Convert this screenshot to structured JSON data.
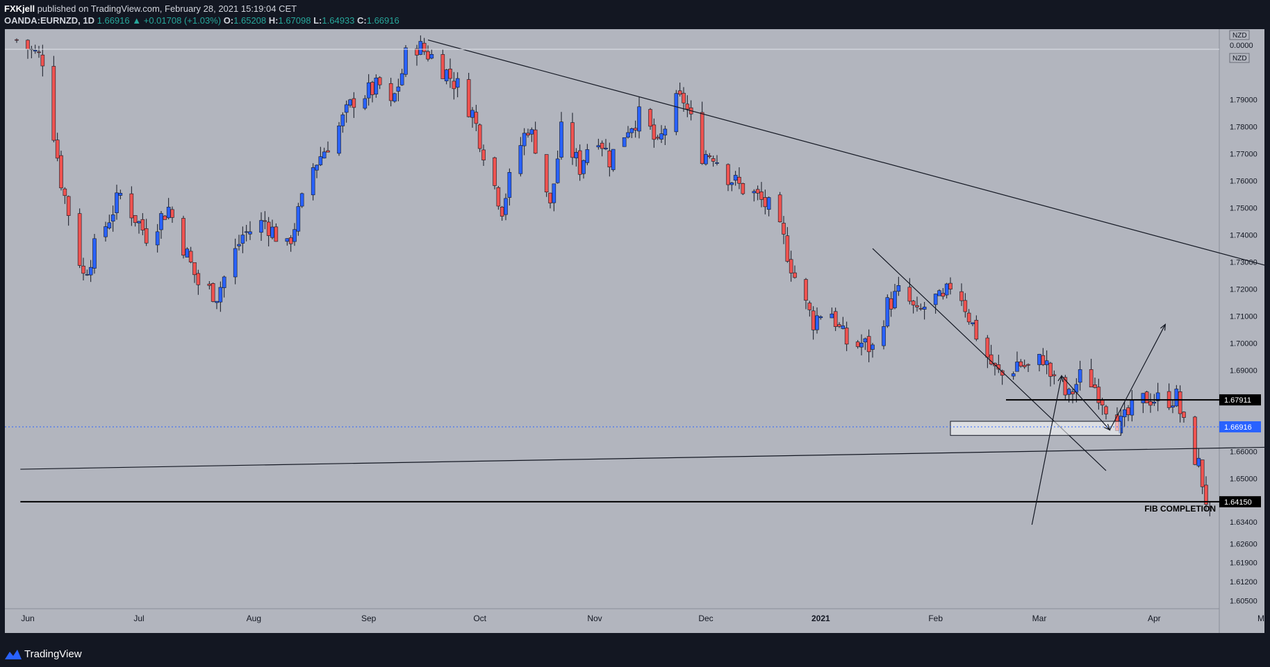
{
  "header": {
    "publisher": "FXKjell",
    "published_text": " published on TradingView.com, February 28, 2021 15:19:04 CET",
    "symbol": "OANDA:EURNZD, 1D",
    "last": "1.66916",
    "change": "+0.01708 (+1.03%)",
    "open_label": "O:",
    "open": "1.65208",
    "high_label": "H:",
    "high": "1.67098",
    "low_label": "L:",
    "low": "1.64933",
    "close_label": "C:",
    "close": "1.66916"
  },
  "footer": {
    "brand": "TradingView"
  },
  "colors": {
    "background": "#b2b5be",
    "frame": "#131722",
    "up": "#2962ff",
    "down": "#ef5350",
    "wick": "#131722",
    "trendline": "#131722",
    "current_price_line": "#2962ff"
  },
  "chart_data": {
    "type": "candlestick",
    "symbol": "OANDA:EURNZD",
    "timeframe": "1D",
    "currency": "NZD",
    "ylim": [
      1.6025,
      1.8125
    ],
    "yticks": [
      "1.79000",
      "1.78000",
      "1.77000",
      "1.76000",
      "1.75000",
      "1.74000",
      "1.73000",
      "1.72000",
      "1.71000",
      "1.70000",
      "1.69000",
      "1.66000",
      "1.65000",
      "1.63400",
      "1.62600",
      "1.61900",
      "1.61200",
      "1.60500"
    ],
    "xticks": [
      {
        "label": "Jun",
        "date": "2020-06-01"
      },
      {
        "label": "Jul",
        "date": "2020-07-01"
      },
      {
        "label": "Aug",
        "date": "2020-08-01"
      },
      {
        "label": "Sep",
        "date": "2020-09-01"
      },
      {
        "label": "Oct",
        "date": "2020-10-01"
      },
      {
        "label": "Nov",
        "date": "2020-11-01"
      },
      {
        "label": "Dec",
        "date": "2020-12-01"
      },
      {
        "label": "2021",
        "date": "2021-01-01",
        "bold": true
      },
      {
        "label": "Feb",
        "date": "2021-02-01"
      },
      {
        "label": "Mar",
        "date": "2021-03-01"
      },
      {
        "label": "Apr",
        "date": "2021-04-01"
      },
      {
        "label": "May",
        "date": "2021-05-01"
      }
    ],
    "scale_top_labels": [
      "NZD",
      "0.0000",
      "NZD"
    ],
    "price_labels": [
      {
        "price": 1.67911,
        "text": "1.67911",
        "style": "black"
      },
      {
        "price": 1.66916,
        "text": "1.66916",
        "style": "current"
      },
      {
        "price": 1.6415,
        "text": "1.64150",
        "style": "black"
      }
    ],
    "anchors": [
      {
        "date": "2020-05-29",
        "price": 1.812
      },
      {
        "date": "2020-06-05",
        "price": 1.805
      },
      {
        "date": "2020-06-10",
        "price": 1.76
      },
      {
        "date": "2020-06-16",
        "price": 1.725
      },
      {
        "date": "2020-06-19",
        "price": 1.735
      },
      {
        "date": "2020-06-26",
        "price": 1.755
      },
      {
        "date": "2020-07-03",
        "price": 1.74
      },
      {
        "date": "2020-07-09",
        "price": 1.75
      },
      {
        "date": "2020-07-17",
        "price": 1.722
      },
      {
        "date": "2020-07-22",
        "price": 1.718
      },
      {
        "date": "2020-07-29",
        "price": 1.74
      },
      {
        "date": "2020-08-04",
        "price": 1.745
      },
      {
        "date": "2020-08-10",
        "price": 1.735
      },
      {
        "date": "2020-08-17",
        "price": 1.765
      },
      {
        "date": "2020-08-24",
        "price": 1.78
      },
      {
        "date": "2020-08-28",
        "price": 1.79
      },
      {
        "date": "2020-09-04",
        "price": 1.795
      },
      {
        "date": "2020-09-07",
        "price": 1.787
      },
      {
        "date": "2020-09-10",
        "price": 1.8
      },
      {
        "date": "2020-09-12",
        "price": 1.812
      },
      {
        "date": "2020-09-19",
        "price": 1.805
      },
      {
        "date": "2020-09-25",
        "price": 1.795
      },
      {
        "date": "2020-09-29",
        "price": 1.785
      },
      {
        "date": "2020-10-04",
        "price": 1.762
      },
      {
        "date": "2020-10-07",
        "price": 1.75
      },
      {
        "date": "2020-10-11",
        "price": 1.77
      },
      {
        "date": "2020-10-14",
        "price": 1.78
      },
      {
        "date": "2020-10-17",
        "price": 1.77
      },
      {
        "date": "2020-10-20",
        "price": 1.75
      },
      {
        "date": "2020-10-23",
        "price": 1.778
      },
      {
        "date": "2020-10-28",
        "price": 1.765
      },
      {
        "date": "2020-11-01",
        "price": 1.78
      },
      {
        "date": "2020-11-05",
        "price": 1.768
      },
      {
        "date": "2020-11-10",
        "price": 1.78
      },
      {
        "date": "2020-11-14",
        "price": 1.785
      },
      {
        "date": "2020-11-18",
        "price": 1.772
      },
      {
        "date": "2020-11-22",
        "price": 1.788
      },
      {
        "date": "2020-11-25",
        "price": 1.79
      },
      {
        "date": "2020-11-30",
        "price": 1.77
      },
      {
        "date": "2020-12-03",
        "price": 1.77
      },
      {
        "date": "2020-12-07",
        "price": 1.762
      },
      {
        "date": "2020-12-10",
        "price": 1.758
      },
      {
        "date": "2020-12-14",
        "price": 1.755
      },
      {
        "date": "2020-12-18",
        "price": 1.75
      },
      {
        "date": "2020-12-22",
        "price": 1.738
      },
      {
        "date": "2020-12-26",
        "price": 1.72
      },
      {
        "date": "2020-12-30",
        "price": 1.708
      },
      {
        "date": "2021-01-03",
        "price": 1.715
      },
      {
        "date": "2021-01-06",
        "price": 1.705
      },
      {
        "date": "2021-01-09",
        "price": 1.698
      },
      {
        "date": "2021-01-12",
        "price": 1.7
      },
      {
        "date": "2021-01-15",
        "price": 1.698
      },
      {
        "date": "2021-01-19",
        "price": 1.714
      },
      {
        "date": "2021-01-23",
        "price": 1.72
      },
      {
        "date": "2021-01-27",
        "price": 1.71
      },
      {
        "date": "2021-01-31",
        "price": 1.717
      },
      {
        "date": "2021-02-03",
        "price": 1.715
      },
      {
        "date": "2021-02-06",
        "price": 1.725
      },
      {
        "date": "2021-02-10",
        "price": 1.71
      },
      {
        "date": "2021-02-13",
        "price": 1.7
      },
      {
        "date": "2021-02-17",
        "price": 1.69
      },
      {
        "date": "2021-02-20",
        "price": 1.687
      },
      {
        "date": "2021-02-23",
        "price": 1.693
      },
      {
        "date": "2021-02-27",
        "price": 1.69
      },
      {
        "date": "2021-03-02",
        "price": 1.695
      },
      {
        "date": "2021-03-05",
        "price": 1.685
      },
      {
        "date": "2021-03-09",
        "price": 1.68
      },
      {
        "date": "2021-03-13",
        "price": 1.69
      },
      {
        "date": "2021-03-17",
        "price": 1.682
      },
      {
        "date": "2021-03-20",
        "price": 1.675
      },
      {
        "date": "2021-03-23",
        "price": 1.67
      },
      {
        "date": "2021-03-26",
        "price": 1.675
      },
      {
        "date": "2021-03-30",
        "price": 1.68
      },
      {
        "date": "2021-04-03",
        "price": 1.679
      },
      {
        "date": "2021-04-07",
        "price": 1.68
      },
      {
        "date": "2021-04-10",
        "price": 1.664
      },
      {
        "date": "2021-04-13",
        "price": 1.655
      },
      {
        "date": "2021-04-16",
        "price": 1.636
      },
      {
        "date": "2021-04-19",
        "price": 1.645
      },
      {
        "date": "2021-04-22",
        "price": 1.652
      },
      {
        "date": "2021-04-25",
        "price": 1.6692
      }
    ],
    "annotations": {
      "trendlines": [
        {
          "from": {
            "date": "2020-09-17",
            "price": 1.812
          },
          "to": {
            "date": "2021-07-10",
            "price": 1.703
          }
        },
        {
          "from": {
            "date": "2021-01-15",
            "price": 1.735
          },
          "to": {
            "date": "2021-03-19",
            "price": 1.653
          }
        },
        {
          "from": {
            "date": "2020-05-30",
            "price": 1.6535
          },
          "to": {
            "date": "2021-07-10",
            "price": 1.6633
          }
        }
      ],
      "horizontal_lines": [
        {
          "price": 1.67911,
          "from_date": "2021-02-20",
          "label": "1.67911"
        },
        {
          "price": 1.6415,
          "from_date": "2020-05-30",
          "label": "1.64150",
          "text": "FIB COMPLETION"
        }
      ],
      "zones": [
        {
          "from": {
            "date": "2021-02-05",
            "price": 1.6712
          },
          "to": {
            "date": "2021-03-23",
            "price": 1.666
          }
        }
      ],
      "projection_path": [
        {
          "date": "2021-02-27",
          "price": 1.633
        },
        {
          "date": "2021-03-07",
          "price": 1.688
        },
        {
          "date": "2021-03-20",
          "price": 1.668
        },
        {
          "date": "2021-04-04",
          "price": 1.707
        }
      ]
    },
    "grid": false,
    "legend": "none"
  }
}
